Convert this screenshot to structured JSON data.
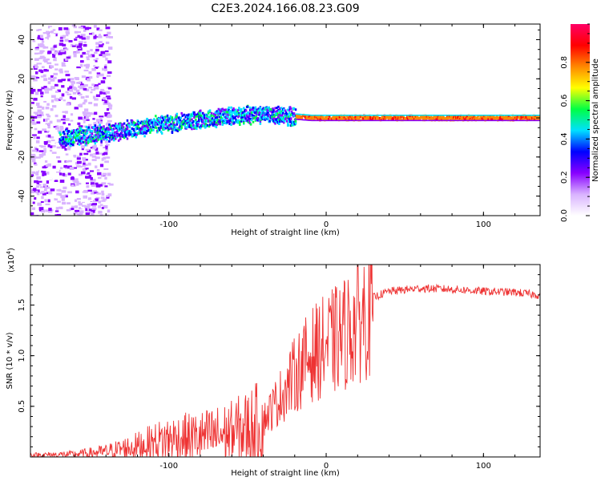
{
  "title": "C2E3.2024.166.08.23.G09",
  "chart_data": [
    {
      "type": "heatmap",
      "xlabel": "Height of straight line (km)",
      "ylabel": "Frequency (Hz)",
      "xlim": [
        -188,
        136
      ],
      "ylim": [
        -50,
        48
      ],
      "x_ticks": [
        -100,
        0,
        100
      ],
      "y_ticks": [
        -40,
        -20,
        0,
        20,
        40
      ],
      "colorbar": {
        "label": "Normalized spectral amplitude",
        "range": [
          0.0,
          1.0
        ],
        "ticks": [
          "0.0",
          "0.2",
          "0.4",
          "0.6",
          "0.8"
        ],
        "tick_values": [
          0.0,
          0.2,
          0.4,
          0.6,
          0.8
        ],
        "colors": [
          "#ffffff",
          "#d9b3ff",
          "#8800ff",
          "#0000ff",
          "#00e0ff",
          "#00ff44",
          "#ffff00",
          "#ff8800",
          "#ff0000",
          "#ff0066"
        ]
      },
      "ridge": [
        {
          "x": -165,
          "y": -10
        },
        {
          "x": -140,
          "y": -8
        },
        {
          "x": -120,
          "y": -5
        },
        {
          "x": -100,
          "y": -3
        },
        {
          "x": -80,
          "y": -1
        },
        {
          "x": -60,
          "y": 1
        },
        {
          "x": -40,
          "y": 2
        },
        {
          "x": -25,
          "y": 1
        },
        {
          "x": -10,
          "y": 0
        },
        {
          "x": 10,
          "y": 0
        },
        {
          "x": 40,
          "y": 0
        },
        {
          "x": 80,
          "y": 0
        },
        {
          "x": 100,
          "y": 0
        },
        {
          "x": 136,
          "y": 0
        }
      ]
    },
    {
      "type": "line",
      "xlabel": "Height of straight line (km)",
      "ylabel": "SNR (10 * v/v)",
      "multiplier": "(x10",
      "multiplier_exp": "4",
      "multiplier_close": ")",
      "xlim": [
        -188,
        136
      ],
      "ylim": [
        0.0,
        1.9
      ],
      "x_ticks": [
        -100,
        0,
        100
      ],
      "y_ticks": [
        0.5,
        1.0,
        1.5
      ],
      "y_tick_labels": [
        "0.5",
        "1.0",
        "1.5"
      ],
      "series": [
        {
          "color": "#ee3333",
          "envelope": [
            {
              "x": -188,
              "y": 0.02
            },
            {
              "x": -160,
              "y": 0.03
            },
            {
              "x": -140,
              "y": 0.06
            },
            {
              "x": -120,
              "y": 0.12
            },
            {
              "x": -100,
              "y": 0.2
            },
            {
              "x": -80,
              "y": 0.22
            },
            {
              "x": -60,
              "y": 0.27
            },
            {
              "x": -40,
              "y": 0.38
            },
            {
              "x": -30,
              "y": 0.6
            },
            {
              "x": -20,
              "y": 0.85
            },
            {
              "x": -10,
              "y": 1.05
            },
            {
              "x": 0,
              "y": 1.15
            },
            {
              "x": 10,
              "y": 1.25
            },
            {
              "x": 20,
              "y": 1.4
            },
            {
              "x": 30,
              "y": 1.58
            },
            {
              "x": 40,
              "y": 1.64
            },
            {
              "x": 60,
              "y": 1.67
            },
            {
              "x": 80,
              "y": 1.66
            },
            {
              "x": 100,
              "y": 1.64
            },
            {
              "x": 120,
              "y": 1.63
            },
            {
              "x": 136,
              "y": 1.6
            }
          ]
        }
      ]
    }
  ]
}
